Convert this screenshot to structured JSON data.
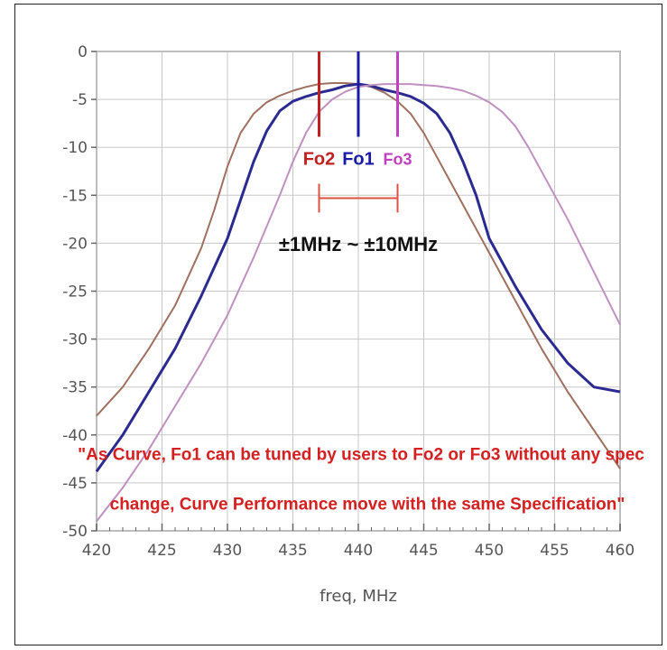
{
  "chart_data": {
    "type": "line",
    "xlabel": "freq, MHz",
    "ylabel": "",
    "xlim": [
      420,
      460
    ],
    "ylim": [
      -50,
      0
    ],
    "xticks": [
      420,
      425,
      430,
      435,
      440,
      445,
      450,
      455,
      460
    ],
    "xtick_labels": [
      "420",
      "425",
      "430",
      "435",
      "440",
      "445",
      "450",
      "455",
      "460"
    ],
    "yticks": [
      0,
      -5,
      -10,
      -15,
      -20,
      -25,
      -30,
      -35,
      -40,
      -45,
      -50
    ],
    "ytick_labels": [
      "0",
      "-5",
      "-10",
      "-15",
      "-20",
      "-25",
      "-30",
      "-35",
      "-40",
      "-45",
      "-50"
    ],
    "grid": true,
    "series": [
      {
        "name": "Fo2",
        "color": "#a07060",
        "x": [
          420,
          422,
          424,
          426,
          428,
          429,
          430,
          431,
          432,
          433,
          434,
          435,
          436,
          437,
          438,
          439,
          440,
          441,
          442,
          443,
          444,
          445,
          446,
          447,
          448,
          449,
          450,
          452,
          454,
          456,
          458,
          460
        ],
        "y": [
          -38,
          -35,
          -31,
          -26.5,
          -20.5,
          -16.5,
          -12,
          -8.5,
          -6.5,
          -5.3,
          -4.6,
          -4.1,
          -3.7,
          -3.4,
          -3.3,
          -3.3,
          -3.4,
          -3.7,
          -4.3,
          -5.2,
          -6.5,
          -8.5,
          -11,
          -13.5,
          -16,
          -18.5,
          -21,
          -26,
          -31,
          -35.5,
          -39.5,
          -43.5
        ]
      },
      {
        "name": "Fo1",
        "color": "#2a2a90",
        "x": [
          420,
          422,
          424,
          426,
          428,
          430,
          431,
          432,
          433,
          434,
          435,
          436,
          437,
          438,
          439,
          440,
          441,
          442,
          443,
          444,
          445,
          446,
          447,
          448,
          449,
          450,
          452,
          454,
          456,
          458,
          460
        ],
        "y": [
          -43.8,
          -40,
          -35.5,
          -31,
          -25.5,
          -19.5,
          -15.5,
          -11.5,
          -8.3,
          -6.2,
          -5.2,
          -4.7,
          -4.3,
          -4,
          -3.6,
          -3.4,
          -3.6,
          -4,
          -4.3,
          -4.7,
          -5.4,
          -6.5,
          -8.5,
          -11.5,
          -15,
          -19.5,
          -24.5,
          -29,
          -32.5,
          -35,
          -35.5
        ]
      },
      {
        "name": "Fo3",
        "color": "#c090c0",
        "x": [
          420,
          422,
          424,
          426,
          428,
          430,
          432,
          434,
          435,
          436,
          437,
          438,
          439,
          440,
          441,
          442,
          443,
          444,
          445,
          446,
          447,
          448,
          449,
          450,
          451,
          452,
          453,
          454,
          456,
          458,
          460
        ],
        "y": [
          -49,
          -45.5,
          -41.5,
          -37,
          -32.5,
          -27.5,
          -21.5,
          -15,
          -11.5,
          -8.5,
          -6.3,
          -5,
          -4.2,
          -3.7,
          -3.5,
          -3.4,
          -3.4,
          -3.4,
          -3.5,
          -3.6,
          -3.8,
          -4.1,
          -4.6,
          -5.3,
          -6.3,
          -7.8,
          -10,
          -12.5,
          -17.5,
          -23,
          -28.5
        ]
      }
    ],
    "markers": [
      {
        "label": "Fo2",
        "x": 437,
        "color": "#c02020"
      },
      {
        "label": "Fo1",
        "x": 440,
        "color": "#1a1aa8"
      },
      {
        "label": "Fo3",
        "x": 443,
        "color": "#c040c0"
      }
    ],
    "range_label": "±1MHz ~ ±10MHz",
    "annotation_lines": [
      "\"As Curve, Fo1 can be tuned by users to Fo2 or Fo3 without any spec",
      "change, Curve Performance move with the same Specification\""
    ]
  }
}
